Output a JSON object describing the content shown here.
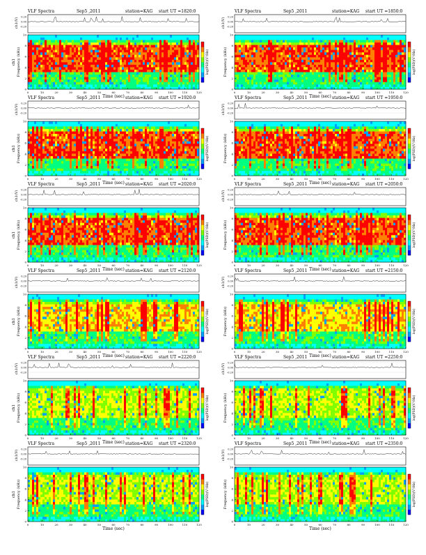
{
  "figure": {
    "panel_header_fields": [
      "title",
      "date",
      "station",
      "start"
    ],
    "colors": {
      "colormap": [
        "#0000ff",
        "#00a0ff",
        "#00ffff",
        "#00ff80",
        "#80ff00",
        "#ffff00",
        "#ff8000",
        "#ff0000"
      ],
      "axis": "#000000"
    }
  },
  "chart_data": [
    {
      "type": "heatmap",
      "title": "VLF Spectra",
      "date": "Sep5 ,2011",
      "station": "station=KAG",
      "start": "start UT =1820:0",
      "xlabel": "Time (sec)",
      "ylabel": "Frequency (kHz)",
      "ch_label": "ch1",
      "waveform_ylabel": "ch1(V)",
      "waveform_ticks": [
        "0.20",
        "0.00",
        "-0.20"
      ],
      "colorbar_label": "log(PSD)(V²/Hz)",
      "x_ticks": [
        "0",
        "10",
        "20",
        "30",
        "40",
        "50",
        "60",
        "70",
        "80",
        "90",
        "100",
        "110",
        "120"
      ],
      "y_ticks": [
        "0",
        "2",
        "4",
        "6",
        "8",
        "10"
      ],
      "xlim": [
        0,
        120
      ],
      "ylim": [
        0,
        10
      ],
      "intensity": "high"
    },
    {
      "type": "heatmap",
      "title": "VLF Spectra",
      "date": "Sep5 ,2011",
      "station": "station=KAG",
      "start": "start UT =1850:0",
      "xlabel": "Time (sec)",
      "ylabel": "Frequency (kHz)",
      "ch_label": "",
      "waveform_ylabel": "ch1(V)",
      "waveform_ticks": [
        "0.20",
        "0.00",
        "-0.20"
      ],
      "colorbar_label": "log(PSD)(V²/Hz)",
      "x_ticks": [
        "0",
        "10",
        "20",
        "30",
        "40",
        "50",
        "60",
        "70",
        "80",
        "90",
        "100",
        "110",
        "120"
      ],
      "y_ticks": [
        "0",
        "2",
        "4",
        "6",
        "8",
        "10"
      ],
      "xlim": [
        0,
        120
      ],
      "ylim": [
        0,
        10
      ],
      "intensity": "high"
    },
    {
      "type": "heatmap",
      "title": "VLF Spectra",
      "date": "Sep5 ,2011",
      "station": "station=KAG",
      "start": "start UT =1920:0",
      "xlabel": "Time (sec)",
      "ylabel": "Frequency (kHz)",
      "ch_label": "ch1",
      "waveform_ylabel": "ch1(V)",
      "waveform_ticks": [
        "0.20",
        "0.00",
        "-0.20"
      ],
      "colorbar_label": "log(PSD)(V²/Hz)",
      "x_ticks": [
        "0",
        "10",
        "20",
        "30",
        "40",
        "50",
        "60",
        "70",
        "80",
        "90",
        "100",
        "110",
        "120"
      ],
      "y_ticks": [
        "0",
        "2",
        "4",
        "6",
        "8",
        "10"
      ],
      "xlim": [
        0,
        120
      ],
      "ylim": [
        0,
        10
      ],
      "intensity": "high"
    },
    {
      "type": "heatmap",
      "title": "VLF Spectra",
      "date": "Sep5 ,2011",
      "station": "station=KAG",
      "start": "start UT =1950:0",
      "xlabel": "Time (sec)",
      "ylabel": "Frequency (kHz)",
      "ch_label": "",
      "waveform_ylabel": "ch1(V)",
      "waveform_ticks": [
        "0.20",
        "0.00",
        "-0.20"
      ],
      "colorbar_label": "log(PSD)(V²/Hz)",
      "x_ticks": [
        "0",
        "10",
        "20",
        "30",
        "40",
        "50",
        "60",
        "70",
        "80",
        "90",
        "100",
        "110",
        "120"
      ],
      "y_ticks": [
        "0",
        "2",
        "4",
        "6",
        "8",
        "10"
      ],
      "xlim": [
        0,
        120
      ],
      "ylim": [
        0,
        10
      ],
      "intensity": "high"
    },
    {
      "type": "heatmap",
      "title": "VLF Spectra",
      "date": "Sep5 ,2011",
      "station": "station=KAG",
      "start": "start UT =2020:0",
      "xlabel": "Time (sec)",
      "ylabel": "Frequency (kHz)",
      "ch_label": "ch1",
      "waveform_ylabel": "ch1(V)",
      "waveform_ticks": [
        "0.20",
        "0.00",
        "-0.20"
      ],
      "colorbar_label": "log(PSD)(V²/Hz)",
      "x_ticks": [
        "0",
        "10",
        "20",
        "30",
        "40",
        "50",
        "60",
        "70",
        "80",
        "90",
        "100",
        "110",
        "120"
      ],
      "y_ticks": [
        "0",
        "2",
        "4",
        "6",
        "8",
        "10"
      ],
      "xlim": [
        0,
        120
      ],
      "ylim": [
        0,
        10
      ],
      "intensity": "high"
    },
    {
      "type": "heatmap",
      "title": "VLF Spectra",
      "date": "Sep5 ,2011",
      "station": "station=KAG",
      "start": "start UT =2050:0",
      "xlabel": "Time (sec)",
      "ylabel": "Frequency (kHz)",
      "ch_label": "",
      "waveform_ylabel": "ch1(V)",
      "waveform_ticks": [
        "0.20",
        "0.00",
        "-0.20"
      ],
      "colorbar_label": "log(PSD)(V²/Hz)",
      "x_ticks": [
        "0",
        "10",
        "20",
        "30",
        "40",
        "50",
        "60",
        "70",
        "80",
        "90",
        "100",
        "110",
        "120"
      ],
      "y_ticks": [
        "0",
        "2",
        "4",
        "6",
        "8",
        "10"
      ],
      "xlim": [
        0,
        120
      ],
      "ylim": [
        0,
        10
      ],
      "intensity": "high"
    },
    {
      "type": "heatmap",
      "title": "VLF Spectra",
      "date": "Sep5 ,2011",
      "station": "station=KAG",
      "start": "start UT =2120:0",
      "xlabel": "Time (sec)",
      "ylabel": "Frequency (kHz)",
      "ch_label": "ch1",
      "waveform_ylabel": "ch1(V)",
      "waveform_ticks": [
        "0.20",
        "0.00",
        "-0.20"
      ],
      "colorbar_label": "log(PSD)(V²/Hz)",
      "x_ticks": [
        "0",
        "10",
        "20",
        "30",
        "40",
        "50",
        "60",
        "70",
        "80",
        "90",
        "100",
        "110",
        "120"
      ],
      "y_ticks": [
        "0",
        "2",
        "4",
        "6",
        "8",
        "10"
      ],
      "xlim": [
        0,
        120
      ],
      "ylim": [
        0,
        10
      ],
      "intensity": "medium"
    },
    {
      "type": "heatmap",
      "title": "VLF Spectra",
      "date": "Sep5 ,2011",
      "station": "station=KAG",
      "start": "start UT =2150:0",
      "xlabel": "Time (sec)",
      "ylabel": "Frequency (kHz)",
      "ch_label": "",
      "waveform_ylabel": "ch1(V)",
      "waveform_ticks": [
        "0.20",
        "0.00",
        "-0.20"
      ],
      "colorbar_label": "log(PSD)(V²/Hz)",
      "x_ticks": [
        "0",
        "10",
        "20",
        "30",
        "40",
        "50",
        "60",
        "70",
        "80",
        "90",
        "100",
        "110",
        "120"
      ],
      "y_ticks": [
        "0",
        "2",
        "4",
        "6",
        "8",
        "10"
      ],
      "xlim": [
        0,
        120
      ],
      "ylim": [
        0,
        10
      ],
      "intensity": "medium"
    },
    {
      "type": "heatmap",
      "title": "VLF Spectra",
      "date": "Sep5 ,2011",
      "station": "station=KAG",
      "start": "start UT =2220:0",
      "xlabel": "Time (sec)",
      "ylabel": "Frequency (kHz)",
      "ch_label": "ch1",
      "waveform_ylabel": "ch1(V)",
      "waveform_ticks": [
        "0.20",
        "0.00",
        "-0.20"
      ],
      "colorbar_label": "log(PSD)(V²/Hz)",
      "x_ticks": [
        "0",
        "10",
        "20",
        "30",
        "40",
        "50",
        "60",
        "70",
        "80",
        "90",
        "100",
        "110",
        "120"
      ],
      "y_ticks": [
        "0",
        "2",
        "4",
        "6",
        "8",
        "10"
      ],
      "xlim": [
        0,
        120
      ],
      "ylim": [
        0,
        10
      ],
      "intensity": "low"
    },
    {
      "type": "heatmap",
      "title": "VLF Spectra",
      "date": "Sep5 ,2011",
      "station": "station=KAG",
      "start": "start UT =2250:0",
      "xlabel": "Time (sec)",
      "ylabel": "Frequency (kHz)",
      "ch_label": "",
      "waveform_ylabel": "ch1(V)",
      "waveform_ticks": [
        "0.20",
        "0.00",
        "-0.20"
      ],
      "colorbar_label": "log(PSD)(V²/Hz)",
      "x_ticks": [
        "0",
        "10",
        "20",
        "30",
        "40",
        "50",
        "60",
        "70",
        "80",
        "90",
        "100",
        "110",
        "120"
      ],
      "y_ticks": [
        "0",
        "2",
        "4",
        "6",
        "8",
        "10"
      ],
      "xlim": [
        0,
        120
      ],
      "ylim": [
        0,
        10
      ],
      "intensity": "low"
    },
    {
      "type": "heatmap",
      "title": "VLF Spectra",
      "date": "Sep5 ,2011",
      "station": "station=KAG",
      "start": "start UT =2320:0",
      "xlabel": "Time (sec)",
      "ylabel": "Frequency (kHz)",
      "ch_label": "ch1",
      "waveform_ylabel": "ch1(V)",
      "waveform_ticks": [
        "0.20",
        "0.00",
        "-0.20"
      ],
      "colorbar_label": "log(PSD)(V²/Hz)",
      "x_ticks": [
        "0",
        "10",
        "20",
        "30",
        "40",
        "50",
        "60",
        "70",
        "80",
        "90",
        "100",
        "110",
        "120"
      ],
      "y_ticks": [
        "0",
        "2",
        "4",
        "6",
        "8",
        "10"
      ],
      "xlim": [
        0,
        120
      ],
      "ylim": [
        0,
        10
      ],
      "intensity": "low"
    },
    {
      "type": "heatmap",
      "title": "VLF Spectra",
      "date": "Sep5 ,2011",
      "station": "station=KAG",
      "start": "start UT =2350:0",
      "xlabel": "Time (sec)",
      "ylabel": "Frequency (kHz)",
      "ch_label": "",
      "waveform_ylabel": "ch1(V)",
      "waveform_ticks": [
        "0.20",
        "0.00",
        "-0.20"
      ],
      "colorbar_label": "log(PSD)(V²/Hz)",
      "x_ticks": [
        "0",
        "10",
        "20",
        "30",
        "40",
        "50",
        "60",
        "70",
        "80",
        "90",
        "100",
        "110",
        "120"
      ],
      "y_ticks": [
        "0",
        "2",
        "4",
        "6",
        "8",
        "10"
      ],
      "xlim": [
        0,
        120
      ],
      "ylim": [
        0,
        10
      ],
      "intensity": "low"
    }
  ]
}
